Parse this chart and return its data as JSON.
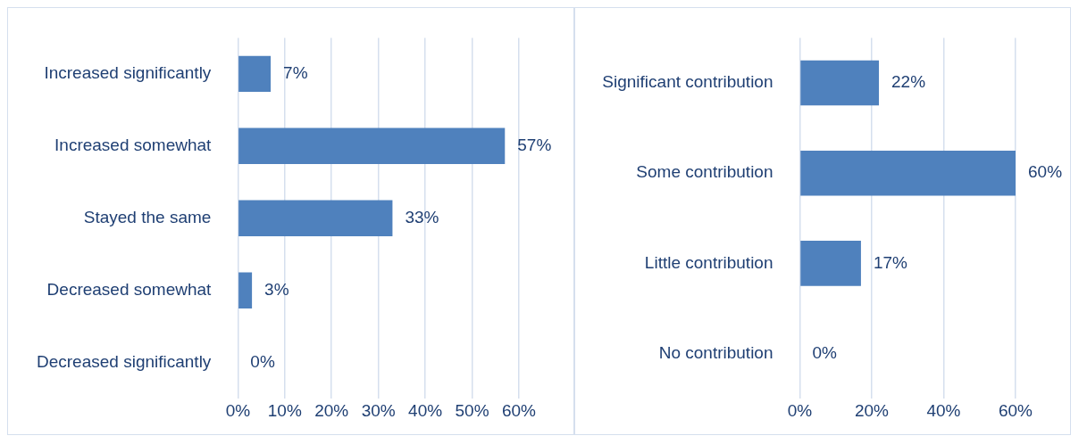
{
  "chart_data": [
    {
      "type": "bar",
      "orientation": "horizontal",
      "categories": [
        "Increased significantly",
        "Increased somewhat",
        "Stayed the same",
        "Decreased somewhat",
        "Decreased significantly"
      ],
      "values": [
        7,
        57,
        33,
        3,
        0
      ],
      "value_labels": [
        "7%",
        "57%",
        "33%",
        "3%",
        "0%"
      ],
      "color": "#4f81bd",
      "xlim": [
        0,
        60
      ],
      "xticks": [
        {
          "value": 0,
          "label": "0%"
        },
        {
          "value": 10,
          "label": "10%"
        },
        {
          "value": 20,
          "label": "20%"
        },
        {
          "value": 30,
          "label": "30%"
        },
        {
          "value": 40,
          "label": "40%"
        },
        {
          "value": 50,
          "label": "50%"
        },
        {
          "value": 60,
          "label": "60%"
        }
      ],
      "grid": "x",
      "legend": false
    },
    {
      "type": "bar",
      "orientation": "horizontal",
      "categories": [
        "Significant contribution",
        "Some contribution",
        "Little contribution",
        "No contribution"
      ],
      "values": [
        22,
        60,
        17,
        0
      ],
      "value_labels": [
        "22%",
        "60%",
        "17%",
        "0%"
      ],
      "color": "#4f81bd",
      "xlim": [
        0,
        60
      ],
      "xticks": [
        {
          "value": 0,
          "label": "0%"
        },
        {
          "value": 20,
          "label": "20%"
        },
        {
          "value": 40,
          "label": "40%"
        },
        {
          "value": 60,
          "label": "60%"
        }
      ],
      "grid": "x",
      "legend": false
    }
  ]
}
